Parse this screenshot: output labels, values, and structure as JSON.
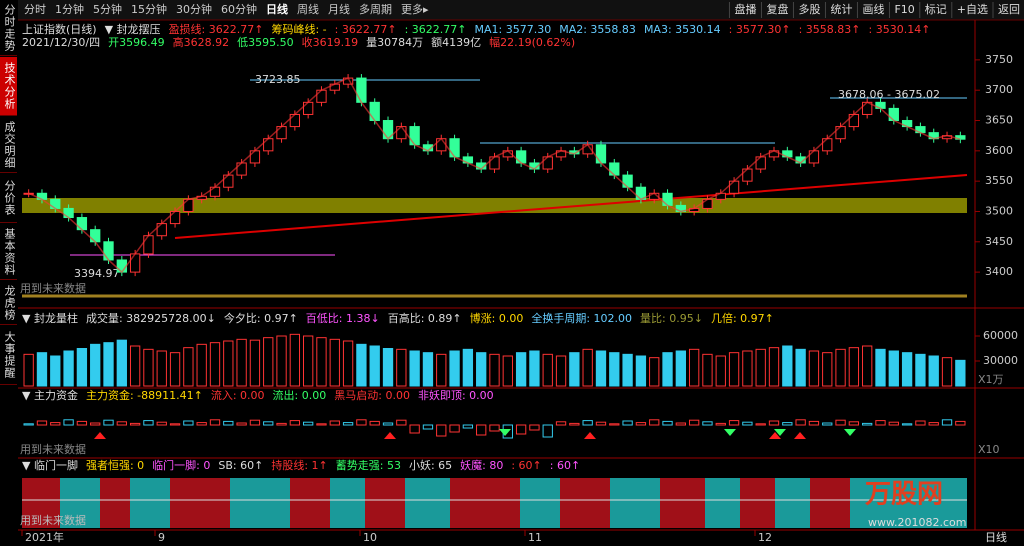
{
  "toolbar": {
    "tabs": [
      "分时",
      "1分钟",
      "5分钟",
      "15分钟",
      "30分钟",
      "60分钟",
      "日线",
      "周线",
      "月线",
      "多周期",
      "更多▸"
    ],
    "active": 6,
    "buttons": [
      "盘播",
      "复盘",
      "多股",
      "统计",
      "画线",
      "F10",
      "标记",
      "+自选",
      "返回"
    ]
  },
  "sidebar": {
    "items": [
      "分时走势",
      "技术分析",
      "成交明细",
      "分价表",
      "基本资料",
      "龙虎榜",
      "大事提醒"
    ],
    "active": 1
  },
  "main": {
    "info1": [
      {
        "text": "上证指数(日线)",
        "color": "#ddd"
      },
      {
        "text": "▼ 封龙摆压",
        "color": "#ddd"
      },
      {
        "text": "盈损线: 3622.77↑",
        "color": "#ff3333"
      },
      {
        "text": "筹码峰线: -",
        "color": "#ffd700"
      },
      {
        "text": ": 3622.77↑",
        "color": "#ff3333"
      },
      {
        "text": ": 3622.77↑",
        "color": "#33ff66"
      },
      {
        "text": "MA1: 3577.30",
        "color": "#66ccff"
      },
      {
        "text": "MA2: 3558.83",
        "color": "#66ccff"
      },
      {
        "text": "MA3: 3530.14",
        "color": "#66ccff"
      },
      {
        "text": ": 3577.30↑",
        "color": "#ff3333"
      },
      {
        "text": ": 3558.83↑",
        "color": "#ff3333"
      },
      {
        "text": ": 3530.14↑",
        "color": "#ff3333"
      }
    ],
    "info2": [
      {
        "text": "2021/12/30/四",
        "color": "#ddd"
      },
      {
        "text": "开3596.49",
        "color": "#33ff66"
      },
      {
        "text": "高3628.92",
        "color": "#ff3333"
      },
      {
        "text": "低3595.50",
        "color": "#33ff66"
      },
      {
        "text": "收3619.19",
        "color": "#ff3333"
      },
      {
        "text": "量30784万",
        "color": "#ddd"
      },
      {
        "text": "额4139亿",
        "color": "#ddd"
      },
      {
        "text": "幅22.19(0.62%)",
        "color": "#ff3333"
      }
    ],
    "ylim": [
      3354,
      3763
    ],
    "yticks": [
      3400,
      3450,
      3500,
      3550,
      3600,
      3650,
      3700,
      3750
    ],
    "closes": [
      3530,
      3520,
      3505,
      3490,
      3470,
      3450,
      3420,
      3400,
      3430,
      3460,
      3480,
      3500,
      3520,
      3525,
      3540,
      3560,
      3580,
      3600,
      3620,
      3640,
      3660,
      3680,
      3700,
      3710,
      3720,
      3680,
      3650,
      3620,
      3640,
      3610,
      3600,
      3620,
      3590,
      3580,
      3570,
      3590,
      3600,
      3580,
      3570,
      3590,
      3600,
      3595,
      3610,
      3580,
      3560,
      3540,
      3520,
      3530,
      3510,
      3500,
      3505,
      3520,
      3530,
      3550,
      3570,
      3590,
      3600,
      3590,
      3580,
      3600,
      3620,
      3640,
      3660,
      3680,
      3670,
      3650,
      3640,
      3630,
      3620,
      3625,
      3619.19
    ],
    "high_label": "3723.85",
    "low_label": "3394.97",
    "range_label": "3678.06 - 3675.02",
    "future_note": "用到未来数据"
  },
  "volume": {
    "info": [
      {
        "text": "▼ 封龙量柱",
        "color": "#ddd"
      },
      {
        "text": "成交量: 382925728.00↓",
        "color": "#ddd"
      },
      {
        "text": "今夕比: 0.97↑",
        "color": "#ddd"
      },
      {
        "text": "百低比: 1.38↓",
        "color": "#ff55ff"
      },
      {
        "text": "百高比: 0.89↑",
        "color": "#ddd"
      },
      {
        "text": "博涨: 0.00",
        "color": "#ffd700"
      },
      {
        "text": "全换手周期: 102.00",
        "color": "#66ccff"
      },
      {
        "text": "量比: 0.95↓",
        "color": "#999933"
      },
      {
        "text": "几倍: 0.97↑",
        "color": "#ffd700"
      }
    ],
    "ylim": [
      0,
      76800
    ],
    "yticks": [
      30000,
      60000
    ],
    "unit": "X1万",
    "values": [
      38000,
      40000,
      36000,
      42000,
      45000,
      50000,
      52000,
      55000,
      48000,
      44000,
      42000,
      40000,
      46000,
      50000,
      52000,
      54000,
      56000,
      55000,
      58000,
      60000,
      62000,
      60000,
      58000,
      56000,
      54000,
      50000,
      48000,
      45000,
      44000,
      42000,
      40000,
      38000,
      42000,
      44000,
      40000,
      38000,
      36000,
      40000,
      42000,
      38000,
      36000,
      40000,
      44000,
      42000,
      40000,
      38000,
      36000,
      34000,
      40000,
      42000,
      44000,
      38000,
      36000,
      40000,
      42000,
      44000,
      46000,
      48000,
      44000,
      42000,
      40000,
      44000,
      46000,
      48000,
      44000,
      42000,
      40000,
      38000,
      36000,
      34000,
      30784
    ]
  },
  "capital": {
    "info": [
      {
        "text": "▼ 主力资金",
        "color": "#ddd"
      },
      {
        "text": "主力资金: -88911.41↑",
        "color": "#ffd700"
      },
      {
        "text": "流入: 0.00",
        "color": "#ff3333"
      },
      {
        "text": "流出: 0.00",
        "color": "#33ff66"
      },
      {
        "text": "黑马启动: 0.00",
        "color": "#ff3333"
      },
      {
        "text": "非妖即顶: 0.00",
        "color": "#ff55ff"
      }
    ],
    "future_note": "用到未来数据",
    "unit": "X10"
  },
  "kick": {
    "info": [
      {
        "text": "▼ 临门一脚",
        "color": "#ddd"
      },
      {
        "text": "强者恒强: 0",
        "color": "#ffd700"
      },
      {
        "text": "临门一脚: 0",
        "color": "#ff55ff"
      },
      {
        "text": "SB: 60↑",
        "color": "#ddd"
      },
      {
        "text": "持股线: 1↑",
        "color": "#ff3333"
      },
      {
        "text": "蓄势走强: 53",
        "color": "#33ff66"
      },
      {
        "text": "小妖: 65",
        "color": "#ddd"
      },
      {
        "text": "妖魔: 80",
        "color": "#ff55ff"
      },
      {
        "text": ": 60↑",
        "color": "#ff3333"
      },
      {
        "text": ": 60↑",
        "color": "#ff55ff"
      }
    ],
    "future_note": "用到未来数据"
  },
  "xaxis": {
    "labels": [
      "2021年",
      "9",
      "10",
      "11",
      "12"
    ],
    "period": "日线"
  },
  "watermark": {
    "brand": "万股网",
    "url": "www.201082.com"
  }
}
